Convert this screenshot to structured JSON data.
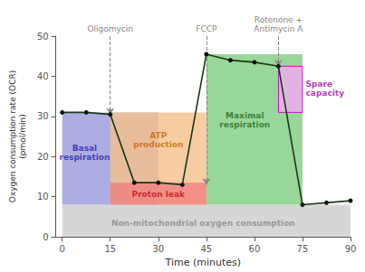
{
  "chart_data": {
    "type": "line",
    "xlabel": "Time (minutes)",
    "ylabel": "Oxygen consumption rate (OCR)\n(pmol/min)",
    "x": [
      0,
      7.5,
      15,
      22.5,
      30,
      37.5,
      45,
      52.5,
      60,
      67.5,
      75,
      82.5,
      90
    ],
    "values": [
      31,
      31,
      30.5,
      13.5,
      13.5,
      13,
      45.5,
      44,
      43.5,
      42.5,
      8,
      8.5,
      9
    ],
    "color": "#1a3a1a",
    "marker": "circle",
    "marker_color": "#111111",
    "line_style": "solid",
    "xlim": [
      -2,
      90
    ],
    "ylim": [
      0,
      50
    ],
    "xticks": [
      0,
      15,
      30,
      45,
      60,
      75,
      90
    ],
    "yticks": [
      0,
      10,
      20,
      30,
      40,
      50
    ],
    "grid": false,
    "legend": false,
    "regions": [
      {
        "x": [
          0,
          90
        ],
        "y": [
          0,
          8
        ],
        "color": "#cccccc"
      },
      {
        "x": [
          0,
          30
        ],
        "y": [
          8,
          31
        ],
        "color": "#9999dd"
      },
      {
        "x": [
          45,
          75
        ],
        "y": [
          8,
          45.5
        ],
        "color": "#80cc80"
      },
      {
        "x": [
          15,
          45
        ],
        "y": [
          8,
          31
        ],
        "color": "#f5c08a"
      },
      {
        "x": [
          15,
          45
        ],
        "y": [
          8,
          13.5
        ],
        "color": "#f08080"
      },
      {
        "x": [
          67.5,
          75
        ],
        "y": [
          31,
          42.5
        ],
        "color": "#e8b0e8",
        "edge_color": "#cc00cc"
      }
    ],
    "injections": [
      {
        "x": 15,
        "y": 30.5,
        "label": "Oligomycin"
      },
      {
        "x": 45,
        "y": 13.0,
        "label": "FCCP"
      },
      {
        "x": 67.5,
        "y": 42.5,
        "label": "Rotenone +\nAntimycin A"
      }
    ],
    "injection_color": "#888888",
    "annotations": [
      {
        "text": "Basal\nrespiration",
        "x": 7,
        "y": 21,
        "color": "#2222aa"
      },
      {
        "text": "ATP\nproduction",
        "x": 30,
        "y": 24,
        "color": "#cc6600"
      },
      {
        "text": "Proton leak",
        "x": 30,
        "y": 10.5,
        "color": "#bb1111"
      },
      {
        "text": "Maximal\nrespiration",
        "x": 57,
        "y": 29,
        "color": "#1a6e1a"
      },
      {
        "text": "Non-mitochondrial oxygen consumption",
        "x": 44,
        "y": 3.5,
        "color": "#888888"
      },
      {
        "text": "Spare\ncapacity",
        "x": 76,
        "y": 37,
        "color": "#aa00aa",
        "anchor": "left"
      }
    ]
  }
}
